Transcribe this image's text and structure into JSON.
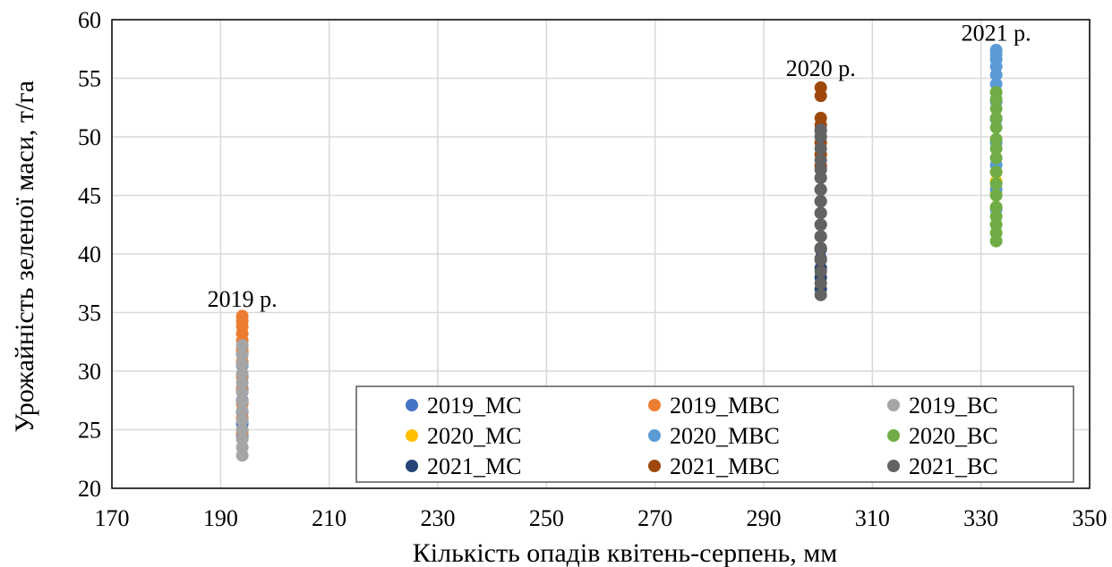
{
  "chart_data": {
    "type": "scatter",
    "xlabel": "Кількість опадів квітень-серпень, мм",
    "ylabel": "Урожайність зеленої маси, т/га",
    "xlim": [
      170,
      350
    ],
    "ylim": [
      20,
      60
    ],
    "x_ticks": [
      170,
      190,
      210,
      230,
      250,
      270,
      290,
      310,
      330,
      350
    ],
    "y_ticks": [
      20,
      25,
      30,
      35,
      40,
      45,
      50,
      55,
      60
    ],
    "grid": true,
    "legend_position": "bottom-right",
    "annotations": [
      {
        "text": "2019 р.",
        "x": 194,
        "y": 35.5
      },
      {
        "text": "2020 р.",
        "x": 300.5,
        "y": 55.2
      },
      {
        "text": "2021 р.",
        "x": 332.8,
        "y": 58.2
      }
    ],
    "series": [
      {
        "name": "2019_МС",
        "color": "#4472C4",
        "x": 194,
        "y": [
          24.5,
          25.5,
          26.5,
          27.5,
          28.5,
          29.5,
          30.5,
          31.5
        ]
      },
      {
        "name": "2019_МВС",
        "color": "#ED7D31",
        "x": 194,
        "y": [
          24.8,
          26.0,
          27.2,
          28.4,
          29.6,
          30.8,
          31.8,
          32.6,
          33.2,
          33.8,
          34.3,
          34.7
        ]
      },
      {
        "name": "2019_ВС",
        "color": "#A5A5A5",
        "x": 194,
        "y": [
          22.8,
          23.5,
          24.2,
          25.0,
          25.8,
          26.6,
          27.4,
          28.2,
          29.0,
          29.8,
          30.6,
          31.4,
          32.2
        ]
      },
      {
        "name": "2020_МС",
        "color": "#FFC000",
        "x": 332.8,
        "y": [
          44.0,
          45.2,
          46.2,
          47.0
        ]
      },
      {
        "name": "2020_МВС",
        "color": "#5B9BD5",
        "x": 332.8,
        "y": [
          43.8,
          45.5,
          47.6,
          49.5,
          51.5,
          53.0,
          54.5,
          55.3,
          56.0,
          56.6,
          57.0,
          57.4
        ]
      },
      {
        "name": "2020_ВС",
        "color": "#70AD47",
        "x": 332.8,
        "y": [
          41.1,
          41.8,
          42.5,
          43.2,
          44.0,
          45.0,
          46.0,
          47.0,
          48.2,
          49.0,
          49.8,
          50.8,
          51.6,
          52.4,
          53.2,
          53.8
        ]
      },
      {
        "name": "2021_МС",
        "color": "#264478",
        "x": 300.5,
        "y": [
          37.0,
          38.0,
          38.8,
          39.6,
          40.4
        ]
      },
      {
        "name": "2021_МВС",
        "color": "#9E480E",
        "x": 300.5,
        "y": [
          39.5,
          40.5,
          41.5,
          42.5,
          43.5,
          44.5,
          45.5,
          46.5,
          47.5,
          48.5,
          49.5,
          50.5,
          51.0,
          51.6,
          53.5,
          54.2
        ]
      },
      {
        "name": "2021_ВС",
        "color": "#636363",
        "x": 300.5,
        "y": [
          36.5,
          37.5,
          38.5,
          39.5,
          40.5,
          41.5,
          42.5,
          43.5,
          44.5,
          45.5,
          46.5,
          47.2,
          48.0,
          49.0,
          50.0,
          50.6
        ]
      }
    ]
  }
}
